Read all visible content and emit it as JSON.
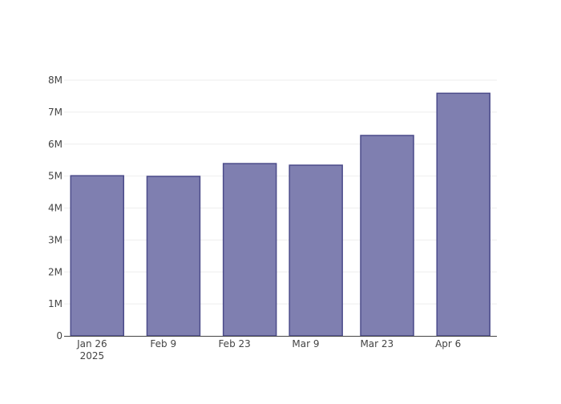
{
  "chart_data": {
    "type": "bar",
    "x": [
      "2025-01-27",
      "2025-02-11",
      "2025-02-26",
      "2025-03-11",
      "2025-03-25",
      "2025-04-09"
    ],
    "values": [
      5010000,
      4990000,
      5390000,
      5340000,
      6270000,
      7590000
    ],
    "color": "#7f7fb0",
    "line_color": "#4b4b8a",
    "xlim": [
      "2025-01-20T12:00",
      "2025-04-15T14:00"
    ],
    "xticks": [
      {
        "value": "2025-01-26",
        "label": "Jan 26\n2025"
      },
      {
        "value": "2025-02-09",
        "label": "Feb 9"
      },
      {
        "value": "2025-02-23",
        "label": "Feb 23"
      },
      {
        "value": "2025-03-09",
        "label": "Mar 9"
      },
      {
        "value": "2025-03-23",
        "label": "Mar 23"
      },
      {
        "value": "2025-04-06",
        "label": "Apr 6"
      }
    ],
    "ylim": [
      0,
      8000000
    ],
    "yticks": [
      0,
      {
        "value": 1000000,
        "label": "1M"
      },
      {
        "value": 2000000,
        "label": "2M"
      },
      {
        "value": 3000000,
        "label": "3M"
      },
      {
        "value": 4000000,
        "label": "4M"
      },
      {
        "value": 5000000,
        "label": "5M"
      },
      {
        "value": 6000000,
        "label": "6M"
      },
      {
        "value": 7000000,
        "label": "7M"
      },
      {
        "value": 8000000,
        "label": "8M"
      }
    ],
    "grid": true
  }
}
